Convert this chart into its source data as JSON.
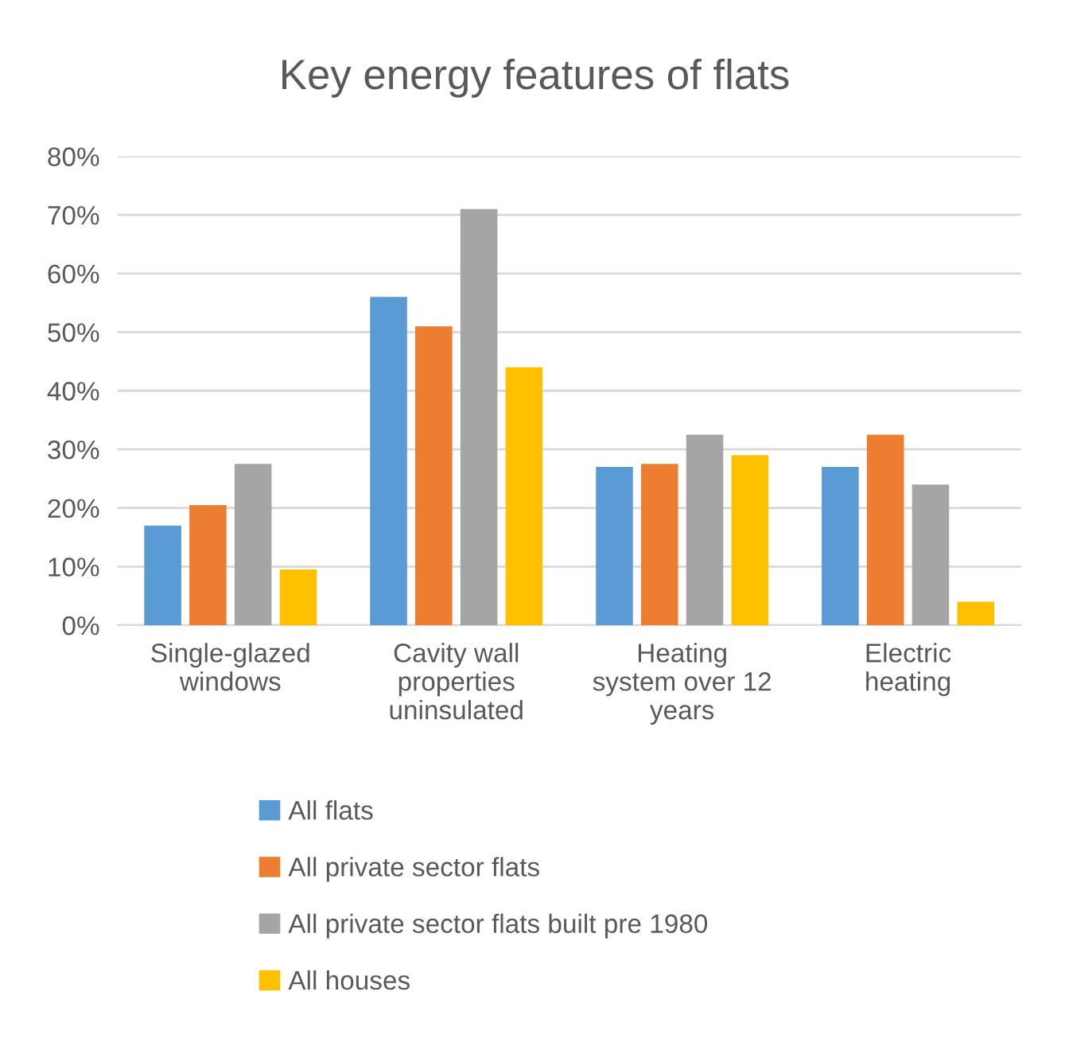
{
  "chart_data": {
    "type": "bar",
    "title": "Key energy features of flats",
    "categories": [
      "Single-glazed\nwindows",
      "Cavity wall\nproperties\nuninsulated",
      "Heating\nsystem over 12\nyears",
      "Electric\nheating"
    ],
    "series": [
      {
        "name": "All flats",
        "color": "#5b9bd5",
        "values": [
          17,
          56,
          27,
          27
        ]
      },
      {
        "name": "All private sector flats",
        "color": "#ed7d31",
        "values": [
          20.5,
          51,
          27.5,
          32.5
        ]
      },
      {
        "name": "All private sector flats built pre 1980",
        "color": "#a5a5a5",
        "values": [
          27.5,
          71,
          32.5,
          24
        ]
      },
      {
        "name": "All houses",
        "color": "#ffc000",
        "values": [
          9.5,
          44,
          29,
          4
        ]
      }
    ],
    "ylim": [
      0,
      80
    ],
    "yticks": [
      {
        "value": 0,
        "label": "0%"
      },
      {
        "value": 10,
        "label": "10%"
      },
      {
        "value": 20,
        "label": "20%"
      },
      {
        "value": 30,
        "label": "30%"
      },
      {
        "value": 40,
        "label": "40%"
      },
      {
        "value": 50,
        "label": "50%"
      },
      {
        "value": 60,
        "label": "60%"
      },
      {
        "value": 70,
        "label": "70%"
      },
      {
        "value": 80,
        "label": "80%"
      }
    ],
    "grid": "y",
    "legend": "bottom"
  }
}
